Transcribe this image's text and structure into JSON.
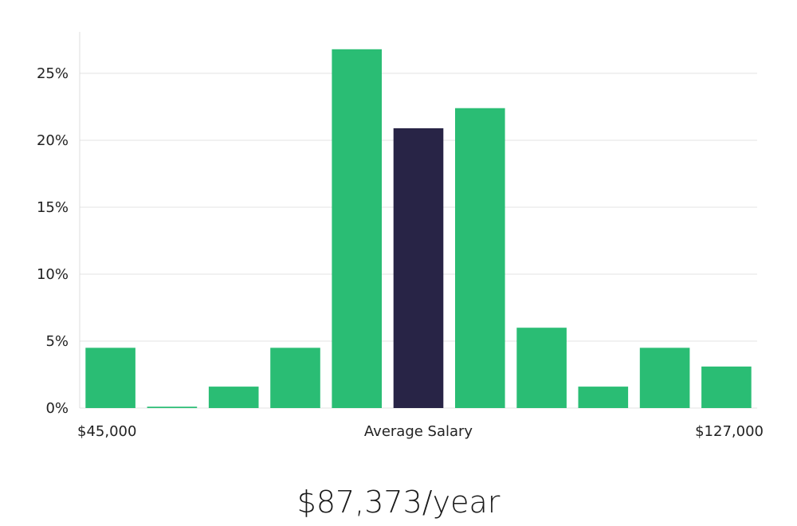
{
  "salary_text": "$87,373/year",
  "colors": {
    "bar": "#2abd74",
    "highlight": "#282446",
    "grid": "#e3e3e3",
    "axis": "#dddddd"
  },
  "chart_data": {
    "type": "bar",
    "title": "",
    "xlabel": "Average Salary",
    "ylabel": "",
    "x_range_labels": [
      "$45,000",
      "$127,000"
    ],
    "y_ticks": [
      0,
      5,
      10,
      15,
      20,
      25
    ],
    "y_tick_labels": [
      "0%",
      "5%",
      "10%",
      "15%",
      "20%",
      "25%"
    ],
    "ylim": [
      0,
      28
    ],
    "grid": true,
    "highlight_index": 5,
    "values": [
      4.5,
      0.1,
      1.6,
      4.5,
      26.8,
      20.9,
      22.4,
      6.0,
      1.6,
      4.5,
      3.1
    ]
  }
}
